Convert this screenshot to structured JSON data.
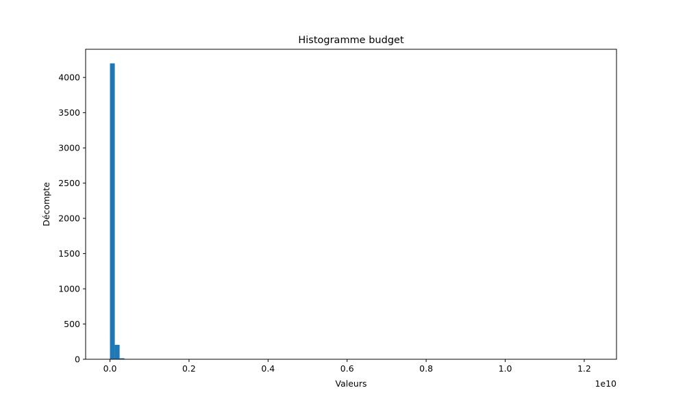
{
  "chart_data": {
    "type": "bar",
    "title": "Histogramme budget",
    "xlabel": "Valeurs",
    "ylabel": "Décompte",
    "x_offset_label": "1e10",
    "xlim": [
      -0.0616,
      1.2816
    ],
    "ylim": [
      0,
      4400
    ],
    "xticks": [
      0.0,
      0.2,
      0.4,
      0.6,
      0.8,
      1.0,
      1.2
    ],
    "xtick_labels": [
      "0.0",
      "0.2",
      "0.4",
      "0.6",
      "0.8",
      "1.0",
      "1.2"
    ],
    "yticks": [
      0,
      500,
      1000,
      1500,
      2000,
      2500,
      3000,
      3500,
      4000
    ],
    "ytick_labels": [
      "0",
      "500",
      "1000",
      "1500",
      "2000",
      "2500",
      "3000",
      "3500",
      "4000"
    ],
    "grid": false,
    "bar_color": "#1f77b4",
    "bin_width": 0.0122,
    "bins": [
      {
        "x0": 0.0,
        "count": 4200
      },
      {
        "x0": 0.0122,
        "count": 205
      },
      {
        "x0": 0.0244,
        "count": 14
      },
      {
        "x0": 0.0366,
        "count": 3
      },
      {
        "x0": 0.0488,
        "count": 1
      },
      {
        "x0": 0.061,
        "count": 1
      },
      {
        "x0": 0.1952,
        "count": 1
      },
      {
        "x0": 1.208,
        "count": 1
      }
    ]
  }
}
